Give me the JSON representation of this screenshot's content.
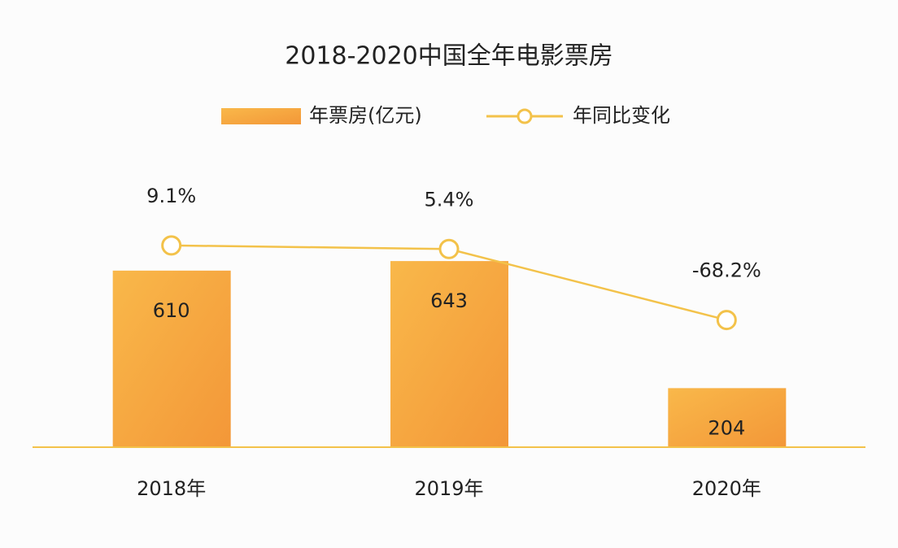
{
  "chart_data": {
    "type": "bar",
    "title": "2018-2020中国全年电影票房",
    "categories": [
      "2018年",
      "2019年",
      "2020年"
    ],
    "series": [
      {
        "name": "年票房(亿元)",
        "type": "bar",
        "color": "#f5a43c",
        "values": [
          610,
          643,
          204
        ]
      },
      {
        "name": "年同比变化",
        "type": "line",
        "axis": "y2",
        "color": "#f3c24a",
        "values": [
          9.1,
          5.4,
          -68.2
        ],
        "value_labels": [
          "9.1%",
          "5.4%",
          "-68.2%"
        ]
      }
    ],
    "ylim": [
      0,
      1000
    ],
    "y2lim": [
      -200,
      100
    ],
    "legend": "top"
  }
}
